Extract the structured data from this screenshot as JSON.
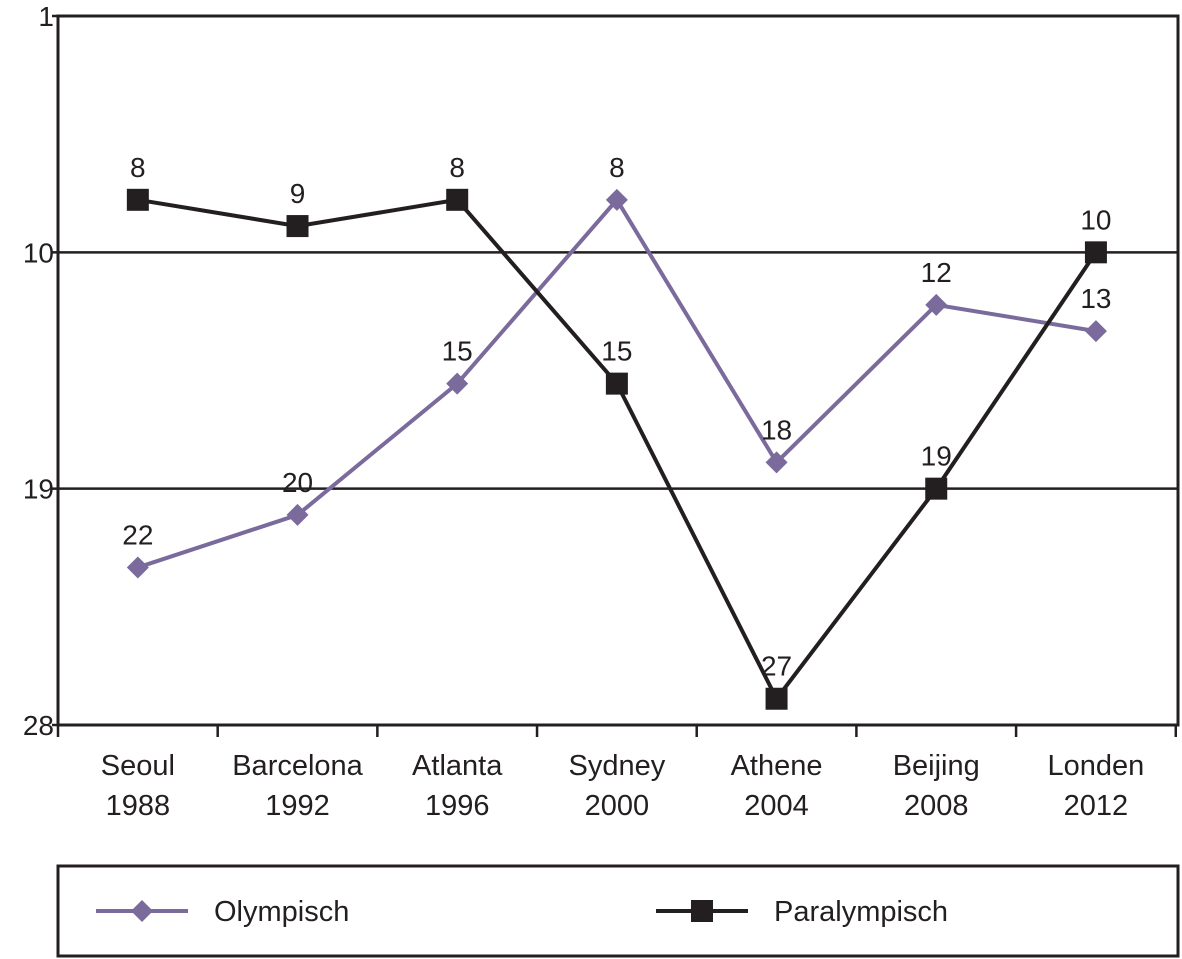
{
  "chart_data": {
    "type": "line",
    "y_inverted": true,
    "ylim": [
      1,
      28
    ],
    "yticks": [
      "1",
      "10",
      "19",
      "28"
    ],
    "ytick_values": [
      1,
      10,
      19,
      28
    ],
    "grid": true,
    "categories": [
      [
        "Seoul",
        "1988"
      ],
      [
        "Barcelona",
        "1992"
      ],
      [
        "Atlanta",
        "1996"
      ],
      [
        "Sydney",
        "2000"
      ],
      [
        "Athene",
        "2004"
      ],
      [
        "Beijing",
        "2008"
      ],
      [
        "Londen",
        "2012"
      ]
    ],
    "series": [
      {
        "name": "Olympisch",
        "marker": "diamond",
        "color": "#7b6a9c",
        "values": [
          22,
          20,
          15,
          8,
          18,
          12,
          13
        ],
        "labels": [
          "22",
          "20",
          "15",
          "8",
          "18",
          "12",
          "13"
        ]
      },
      {
        "name": "Paralympisch",
        "marker": "square",
        "color": "#231f20",
        "values": [
          8,
          9,
          8,
          15,
          27,
          19,
          10
        ],
        "labels": [
          "8",
          "9",
          "8",
          "15",
          "27",
          "19",
          "10"
        ]
      }
    ],
    "legend_position": "bottom"
  }
}
